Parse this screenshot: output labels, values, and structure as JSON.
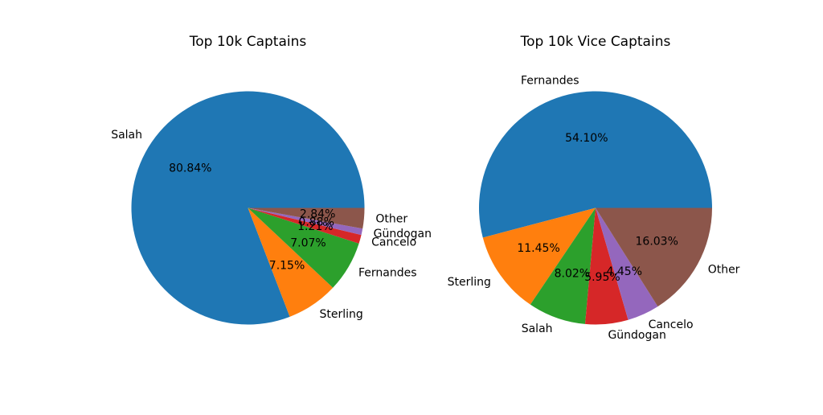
{
  "chart_data": [
    {
      "type": "pie",
      "title": "Top 10k Captains",
      "categories": [
        "Salah",
        "Sterling",
        "Fernandes",
        "Cancelo",
        "Gündogan",
        "Other"
      ],
      "values": [
        80.84,
        7.15,
        7.07,
        1.21,
        0.88,
        2.84
      ],
      "labels_pct": [
        "80.84%",
        "7.15%",
        "7.07%",
        "1.21%",
        "0.88%",
        "2.84%"
      ],
      "colors": [
        "#1f77b4",
        "#ff7f0e",
        "#2ca02c",
        "#d62728",
        "#9467bd",
        "#8c564b"
      ],
      "start_angle_deg": 0,
      "direction": "counterclockwise"
    },
    {
      "type": "pie",
      "title": "Top 10k Vice Captains",
      "categories": [
        "Fernandes",
        "Sterling",
        "Salah",
        "Gündogan",
        "Cancelo",
        "Other"
      ],
      "values": [
        54.1,
        11.45,
        8.02,
        5.95,
        4.45,
        16.03
      ],
      "labels_pct": [
        "54.10%",
        "11.45%",
        "8.02%",
        "5.95%",
        "4.45%",
        "16.03%"
      ],
      "colors": [
        "#1f77b4",
        "#ff7f0e",
        "#2ca02c",
        "#d62728",
        "#9467bd",
        "#8c564b"
      ],
      "start_angle_deg": 0,
      "direction": "counterclockwise"
    }
  ]
}
